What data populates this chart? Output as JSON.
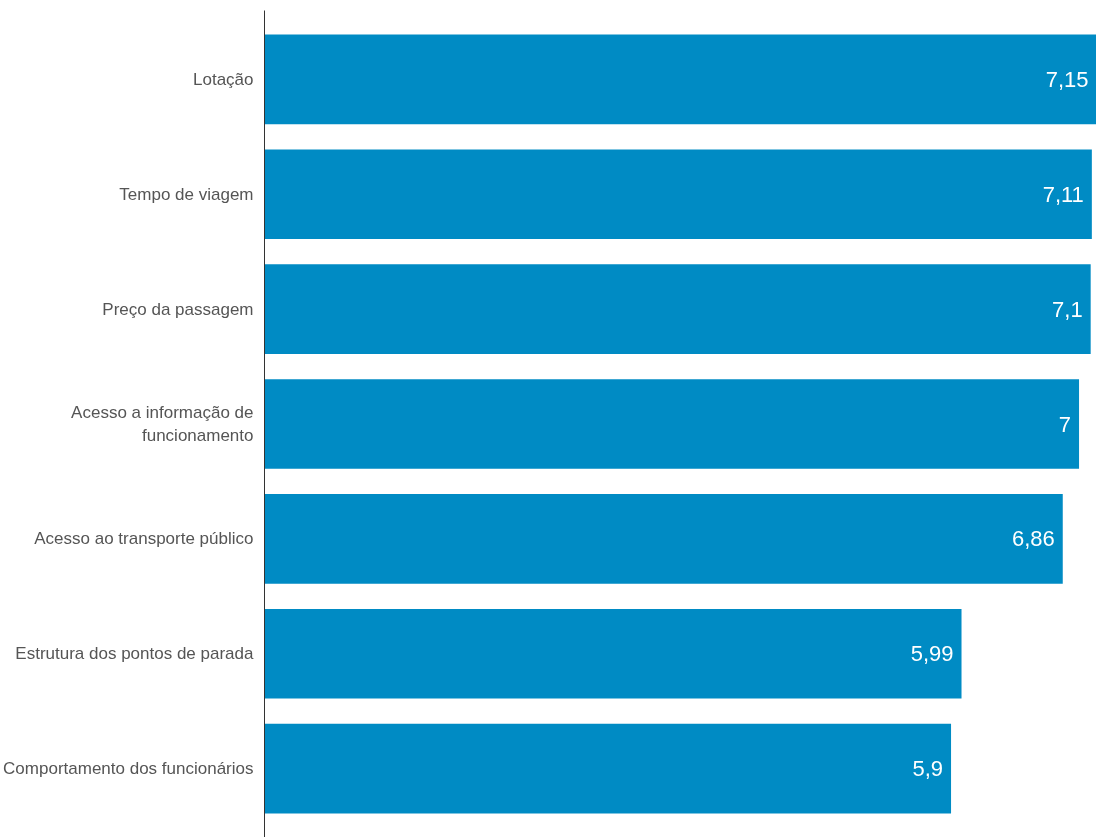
{
  "chart_data": {
    "type": "bar",
    "orientation": "horizontal",
    "categories": [
      "Lotação",
      "Tempo de viagem",
      "Preço da passagem",
      "Acesso a informação de funcionamento",
      "Acesso ao transporte público",
      "Estrutura dos pontos de parada",
      "Comportamento dos funcionários"
    ],
    "values": [
      7.15,
      7.11,
      7.1,
      7,
      6.86,
      5.99,
      5.9
    ],
    "value_labels": [
      "7,15",
      "7,11",
      "7,1",
      "7",
      "6,86",
      "5,99",
      "5,9"
    ],
    "color": "#008bc4",
    "tick_labels": "y",
    "grid": false
  }
}
